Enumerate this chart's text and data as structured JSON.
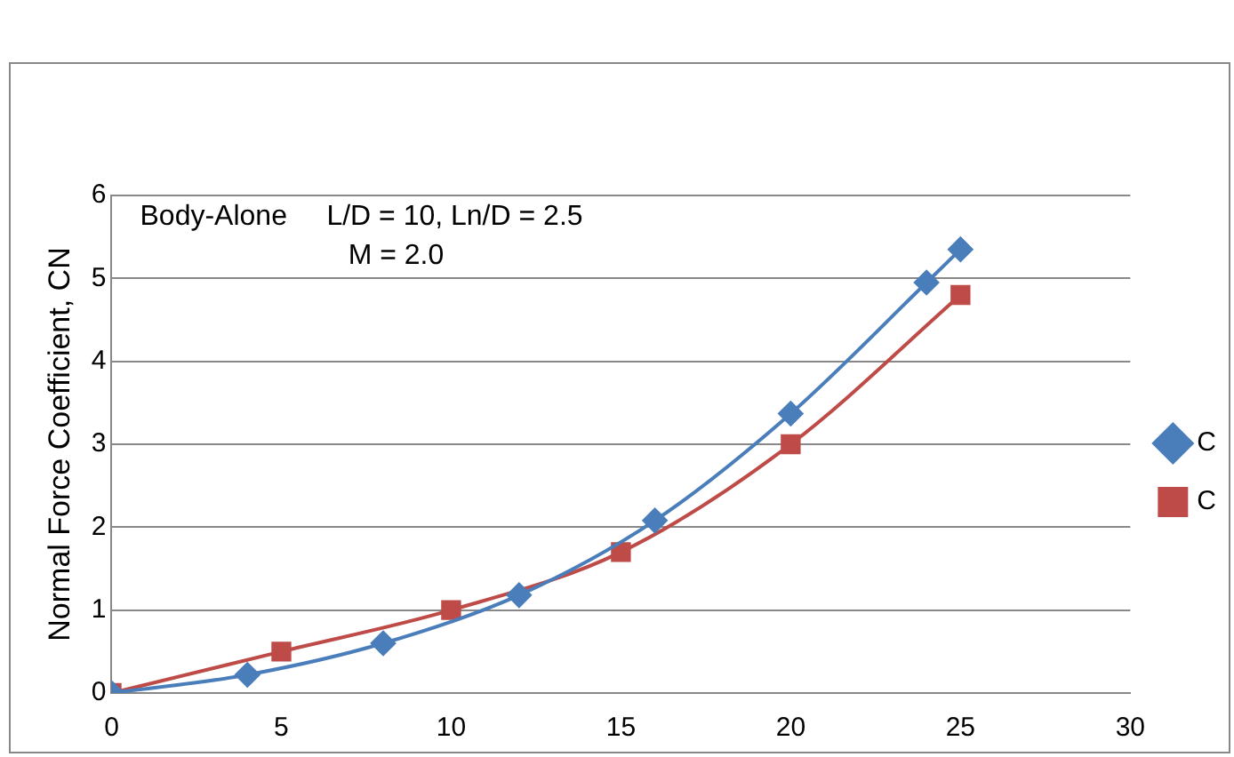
{
  "chart_data": {
    "type": "line",
    "ylabel": "Normal Force Coefficient, CN",
    "annotations": [
      "Body-Alone     L/D = 10, Ln/D = 2.5",
      "M = 2.0"
    ],
    "series": [
      {
        "name": "C",
        "color": "#4a7ebb",
        "marker": "diamond",
        "x": [
          0,
          4,
          8,
          12,
          16,
          20,
          24,
          25
        ],
        "values": [
          0,
          0.22,
          0.6,
          1.18,
          2.08,
          3.37,
          4.95,
          5.35
        ]
      },
      {
        "name": "C",
        "color": "#be4b48",
        "marker": "square",
        "x": [
          0,
          5,
          10,
          15,
          20,
          25
        ],
        "values": [
          0,
          0.5,
          1.0,
          1.7,
          3.0,
          4.8
        ]
      }
    ],
    "xlim": [
      0,
      30
    ],
    "xticks": [
      0,
      5,
      10,
      15,
      20,
      25,
      30
    ],
    "ylim": [
      0,
      6
    ],
    "yticks": [
      0,
      1,
      2,
      3,
      4,
      5,
      6
    ],
    "grid": "y",
    "legend": "right",
    "line_style": "solid"
  }
}
